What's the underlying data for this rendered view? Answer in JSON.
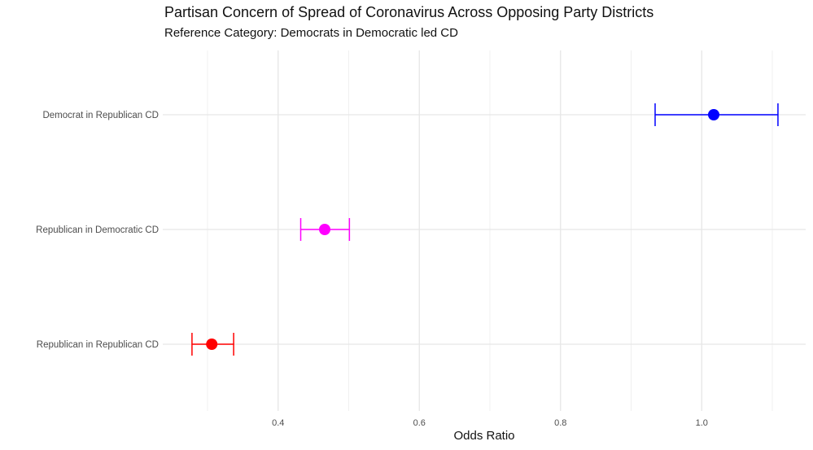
{
  "chart_data": {
    "type": "scatter",
    "title": "Partisan Concern of Spread of Coronavirus Across Opposing Party Districts",
    "subtitle": "Reference Category: Democrats in Democratic led CD",
    "xlabel": "Odds Ratio",
    "ylabel": "",
    "xlim": [
      0.225,
      1.15
    ],
    "x_ticks": [
      0.4,
      0.6,
      0.8,
      1.0
    ],
    "x_tick_labels": [
      "0.4",
      "0.6",
      "0.8",
      "1.0"
    ],
    "grid": true,
    "categories": [
      "Democrat in Republican CD",
      "Republican in Democratic CD",
      "Republican in Republican CD"
    ],
    "points": [
      {
        "category": "Democrat in Republican CD",
        "estimate": 1.017,
        "lower": 0.934,
        "upper": 1.108,
        "color": "#0000ff"
      },
      {
        "category": "Republican in Democratic CD",
        "estimate": 0.466,
        "lower": 0.432,
        "upper": 0.501,
        "color": "#ff00ff"
      },
      {
        "category": "Republican in Republican CD",
        "estimate": 0.306,
        "lower": 0.278,
        "upper": 0.337,
        "color": "#ff0000"
      }
    ]
  }
}
